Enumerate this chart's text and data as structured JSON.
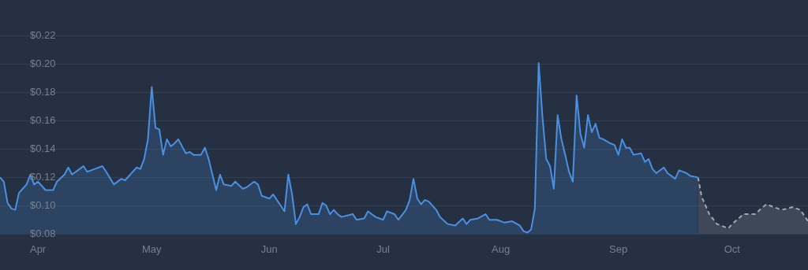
{
  "chart_data": {
    "type": "area",
    "grid": "y",
    "legend": false,
    "marker": "none",
    "xlim": [
      "--03-22",
      "--10-21"
    ],
    "xticks": [
      {
        "value": "--04-01",
        "label": "Apr"
      },
      {
        "value": "--05-01",
        "label": "May"
      },
      {
        "value": "--06-01",
        "label": "Jun"
      },
      {
        "value": "--07-01",
        "label": "Jul"
      },
      {
        "value": "--08-01",
        "label": "Aug"
      },
      {
        "value": "--09-01",
        "label": "Sep"
      },
      {
        "value": "--10-01",
        "label": "Oct"
      }
    ],
    "ylim": [
      0.08,
      0.22
    ],
    "yticks": [
      {
        "value": 0.08,
        "label": "$0.08"
      },
      {
        "value": 0.1,
        "label": "$0.10"
      },
      {
        "value": 0.12,
        "label": "$0.12"
      },
      {
        "value": 0.14,
        "label": "$0.14"
      },
      {
        "value": 0.16,
        "label": "$0.16"
      },
      {
        "value": 0.18,
        "label": "$0.18"
      },
      {
        "value": 0.2,
        "label": "$0.20"
      },
      {
        "value": 0.22,
        "label": "$0.22"
      }
    ],
    "series": [
      {
        "color": "#4a90e2",
        "line_style": "solid",
        "x": [
          "--03-22",
          "--03-23",
          "--03-24",
          "--03-25",
          "--03-26",
          "--03-27",
          "--03-28",
          "--03-29",
          "--03-30",
          "--03-31",
          "--04-01",
          "--04-03",
          "--04-05",
          "--04-06",
          "--04-08",
          "--04-09",
          "--04-10",
          "--04-12",
          "--04-13",
          "--04-14",
          "--04-16",
          "--04-18",
          "--04-19",
          "--04-21",
          "--04-23",
          "--04-24",
          "--04-26",
          "--04-27",
          "--04-28",
          "--04-29",
          "--04-30",
          "--05-01",
          "--05-02",
          "--05-03",
          "--05-04",
          "--05-05",
          "--05-06",
          "--05-07",
          "--05-08",
          "--05-09",
          "--05-10",
          "--05-11",
          "--05-12",
          "--05-14",
          "--05-15",
          "--05-16",
          "--05-17",
          "--05-18",
          "--05-19",
          "--05-20",
          "--05-22",
          "--05-23",
          "--05-25",
          "--05-26",
          "--05-28",
          "--05-29",
          "--05-30",
          "--06-01",
          "--06-02",
          "--06-04",
          "--06-05",
          "--06-06",
          "--06-07",
          "--06-08",
          "--06-09",
          "--06-10",
          "--06-11",
          "--06-12",
          "--06-14",
          "--06-15",
          "--06-16",
          "--06-17",
          "--06-18",
          "--06-19",
          "--06-20",
          "--06-23",
          "--06-24",
          "--06-26",
          "--06-27",
          "--06-29",
          "--07-01",
          "--07-02",
          "--07-04",
          "--07-05",
          "--07-07",
          "--07-08",
          "--07-09",
          "--07-10",
          "--07-11",
          "--07-12",
          "--07-13",
          "--07-15",
          "--07-16",
          "--07-18",
          "--07-20",
          "--07-22",
          "--07-23",
          "--07-24",
          "--07-26",
          "--07-28",
          "--07-29",
          "--07-31",
          "--08-02",
          "--08-04",
          "--08-06",
          "--08-07",
          "--08-08",
          "--08-09",
          "--08-10",
          "--08-11",
          "--08-12",
          "--08-13",
          "--08-14",
          "--08-15",
          "--08-16",
          "--08-17",
          "--08-18",
          "--08-19",
          "--08-20",
          "--08-21",
          "--08-22",
          "--08-23",
          "--08-24",
          "--08-25",
          "--08-26",
          "--08-27",
          "--08-28",
          "--08-30",
          "--08-31",
          "--09-01",
          "--09-02",
          "--09-03",
          "--09-04",
          "--09-05",
          "--09-07",
          "--09-08",
          "--09-09",
          "--09-10",
          "--09-11",
          "--09-13",
          "--09-14",
          "--09-16",
          "--09-17",
          "--09-19",
          "--09-20",
          "--09-22"
        ],
        "values": [
          0.12,
          0.117,
          0.102,
          0.098,
          0.097,
          0.109,
          0.112,
          0.115,
          0.122,
          0.115,
          0.117,
          0.111,
          0.111,
          0.117,
          0.122,
          0.127,
          0.122,
          0.126,
          0.128,
          0.124,
          0.126,
          0.128,
          0.124,
          0.115,
          0.119,
          0.118,
          0.124,
          0.127,
          0.126,
          0.133,
          0.147,
          0.184,
          0.155,
          0.154,
          0.136,
          0.147,
          0.142,
          0.144,
          0.147,
          0.142,
          0.137,
          0.138,
          0.136,
          0.136,
          0.141,
          0.133,
          0.122,
          0.111,
          0.122,
          0.115,
          0.114,
          0.117,
          0.112,
          0.113,
          0.117,
          0.115,
          0.107,
          0.105,
          0.108,
          0.1,
          0.096,
          0.122,
          0.108,
          0.087,
          0.092,
          0.099,
          0.101,
          0.094,
          0.094,
          0.102,
          0.1,
          0.094,
          0.097,
          0.094,
          0.092,
          0.094,
          0.09,
          0.091,
          0.096,
          0.092,
          0.09,
          0.096,
          0.094,
          0.09,
          0.097,
          0.104,
          0.119,
          0.105,
          0.101,
          0.104,
          0.103,
          0.097,
          0.092,
          0.087,
          0.086,
          0.091,
          0.087,
          0.09,
          0.091,
          0.094,
          0.09,
          0.09,
          0.088,
          0.089,
          0.086,
          0.082,
          0.081,
          0.083,
          0.098,
          0.201,
          0.163,
          0.133,
          0.128,
          0.112,
          0.164,
          0.147,
          0.136,
          0.124,
          0.117,
          0.178,
          0.151,
          0.141,
          0.164,
          0.152,
          0.158,
          0.148,
          0.147,
          0.144,
          0.143,
          0.136,
          0.147,
          0.141,
          0.141,
          0.136,
          0.137,
          0.131,
          0.133,
          0.126,
          0.123,
          0.127,
          0.123,
          0.119,
          0.125,
          0.123,
          0.121,
          0.12
        ]
      },
      {
        "color": "#a3a8b0",
        "line_style": "dashed",
        "x": [
          "--09-22",
          "--09-23",
          "--09-25",
          "--09-27",
          "--09-30",
          "--10-01",
          "--10-04",
          "--10-07",
          "--10-10",
          "--10-14",
          "--10-17",
          "--10-19",
          "--10-21"
        ],
        "values": [
          0.12,
          0.106,
          0.094,
          0.087,
          0.084,
          0.087,
          0.094,
          0.094,
          0.101,
          0.097,
          0.099,
          0.097,
          0.089
        ]
      }
    ]
  }
}
